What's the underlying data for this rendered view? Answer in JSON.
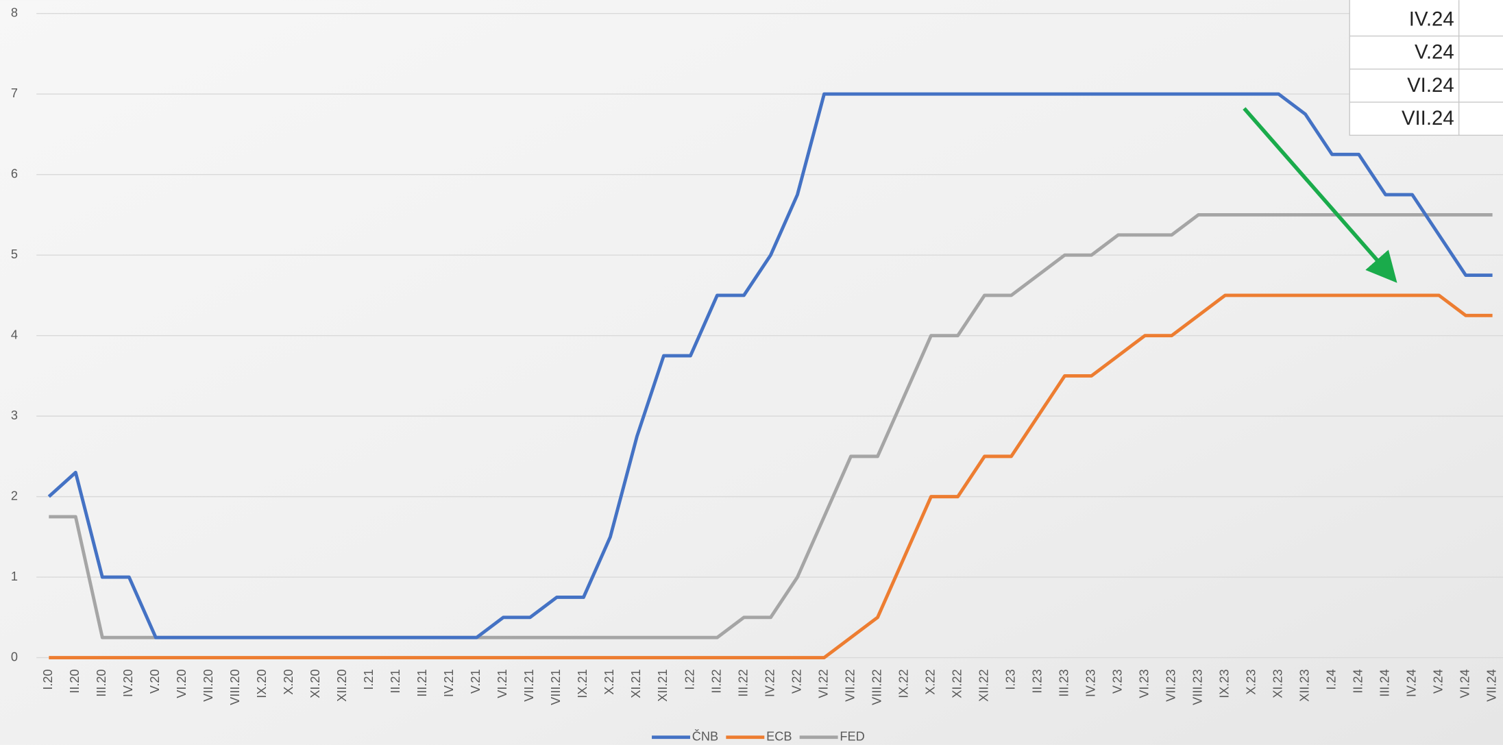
{
  "chart_data": {
    "type": "line",
    "categories": [
      "I.20",
      "II.20",
      "III.20",
      "IV.20",
      "V.20",
      "VI.20",
      "VII.20",
      "VIII.20",
      "IX.20",
      "X.20",
      "XI.20",
      "XII.20",
      "I.21",
      "II.21",
      "III.21",
      "IV.21",
      "V.21",
      "VI.21",
      "VII.21",
      "VIII.21",
      "IX.21",
      "X.21",
      "XI.21",
      "XII.21",
      "I.22",
      "II.22",
      "III.22",
      "IV.22",
      "V.22",
      "VI.22",
      "VII.22",
      "VIII.22",
      "IX.22",
      "X.22",
      "XI.22",
      "XII.22",
      "I.23",
      "II.23",
      "III.23",
      "IV.23",
      "V.23",
      "VI.23",
      "VII.23",
      "VIII.23",
      "IX.23",
      "X.23",
      "XI.23",
      "XII.23",
      "I.24",
      "II.24",
      "III.24",
      "IV.24",
      "V.24",
      "VI.24",
      "VII.24"
    ],
    "series": [
      {
        "name": "ČNB",
        "color": "#4472c4",
        "values": [
          2,
          2.3,
          1,
          1,
          0.25,
          0.25,
          0.25,
          0.25,
          0.25,
          0.25,
          0.25,
          0.25,
          0.25,
          0.25,
          0.25,
          0.25,
          0.25,
          0.5,
          0.5,
          0.75,
          0.75,
          1.5,
          2.75,
          3.75,
          3.75,
          4.5,
          4.5,
          5,
          5.75,
          7,
          7,
          7,
          7,
          7,
          7,
          7,
          7,
          7,
          7,
          7,
          7,
          7,
          7,
          7,
          7,
          7,
          7,
          6.75,
          6.25,
          6.25,
          5.75,
          5.75,
          5.25,
          4.75,
          4.75
        ]
      },
      {
        "name": "ECB",
        "color": "#ed7d31",
        "values": [
          0,
          0,
          0,
          0,
          0,
          0,
          0,
          0,
          0,
          0,
          0,
          0,
          0,
          0,
          0,
          0,
          0,
          0,
          0,
          0,
          0,
          0,
          0,
          0,
          0,
          0,
          0,
          0,
          0,
          0,
          0.25,
          0.5,
          1.25,
          2,
          2,
          2.5,
          2.5,
          3,
          3.5,
          3.5,
          3.75,
          4,
          4,
          4.25,
          4.5,
          4.5,
          4.5,
          4.5,
          4.5,
          4.5,
          4.5,
          4.5,
          4.5,
          4.25,
          4.25
        ]
      },
      {
        "name": "FED",
        "color": "#a5a5a5",
        "values": [
          1.75,
          1.75,
          0.25,
          0.25,
          0.25,
          0.25,
          0.25,
          0.25,
          0.25,
          0.25,
          0.25,
          0.25,
          0.25,
          0.25,
          0.25,
          0.25,
          0.25,
          0.25,
          0.25,
          0.25,
          0.25,
          0.25,
          0.25,
          0.25,
          0.25,
          0.25,
          0.5,
          0.5,
          1,
          1.75,
          2.5,
          2.5,
          3.25,
          4,
          4,
          4.5,
          4.5,
          4.75,
          5,
          5,
          5.25,
          5.25,
          5.25,
          5.5,
          5.5,
          5.5,
          5.5,
          5.5,
          5.5,
          5.5,
          5.5,
          5.5,
          5.5,
          5.5,
          5.5
        ]
      }
    ],
    "ylim": [
      0,
      8
    ],
    "yticks": [
      0,
      1,
      2,
      3,
      4,
      5,
      6,
      7,
      8
    ],
    "grid": true,
    "legend": "bottom"
  },
  "table": {
    "rows": [
      "IV.24",
      "V.24",
      "VI.24",
      "VII.24"
    ]
  }
}
